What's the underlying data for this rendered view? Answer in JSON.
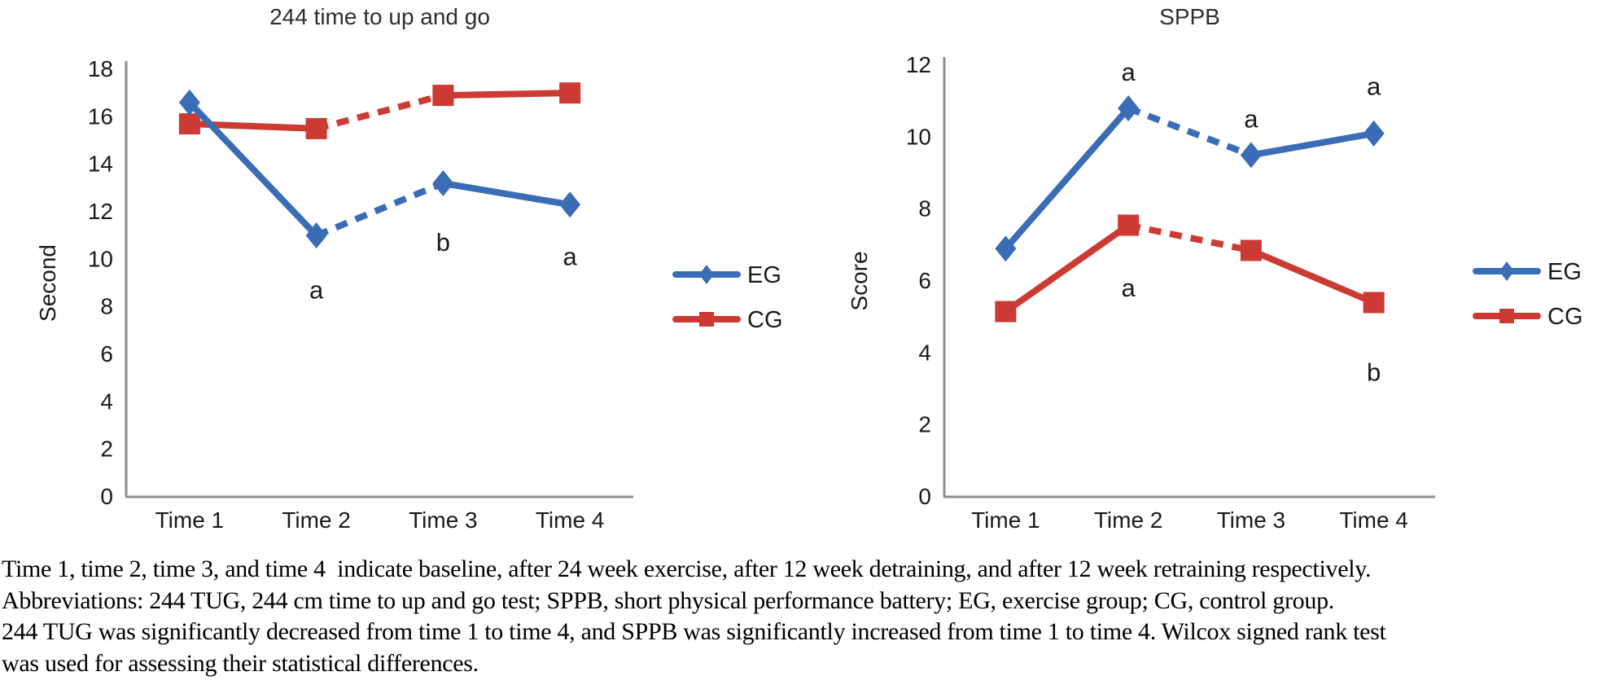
{
  "figure": {
    "caption": {
      "lines": [
        "Time 1, time 2, time 3, and time 4  indicate baseline, after 24 week exercise, after 12 week detraining, and after 12 week retraining respectively.",
        "Abbreviations: 244 TUG, 244 cm time to up and go test; SPPB, short physical performance battery; EG, exercise group; CG, control group.",
        "244 TUG was significantly decreased from time 1 to time 4, and SPPB was significantly increased from time 1 to time 4. Wilcox signed rank test",
        "was used for assessing their statistical differences."
      ]
    }
  },
  "colors": {
    "eg_blue": "#3a6db5",
    "cg_red": "#cc3a34",
    "axis_gray": "#8e8e8e",
    "text_black": "#1a1a1a"
  },
  "chart_data": [
    {
      "type": "line",
      "title": "244 time to up and go",
      "ylabel": "Second",
      "xlabel": "",
      "categories": [
        "Time 1",
        "Time 2",
        "Time 3",
        "Time 4"
      ],
      "ylim": [
        0,
        18
      ],
      "ytick_step": 2,
      "grid": false,
      "legend_position": "right",
      "legend": [
        "EG",
        "CG"
      ],
      "series": [
        {
          "name": "CG",
          "color": "#cc3a34",
          "marker": "square",
          "values": [
            15.7,
            15.5,
            16.9,
            17.0
          ],
          "dashed_segments": [
            [
              1,
              2
            ]
          ]
        },
        {
          "name": "EG",
          "color": "#3a6db5",
          "marker": "diamond",
          "values": [
            16.6,
            11.0,
            13.2,
            12.3
          ],
          "dashed_segments": [
            [
              1,
              2
            ]
          ]
        }
      ],
      "annotations": [
        {
          "text": "a",
          "cat": 1,
          "y": 8.7
        },
        {
          "text": "b",
          "cat": 2,
          "y": 10.7
        },
        {
          "text": "a",
          "cat": 3,
          "y": 10.1
        }
      ]
    },
    {
      "type": "line",
      "title": "SPPB",
      "ylabel": "Score",
      "xlabel": "",
      "categories": [
        "Time 1",
        "Time 2",
        "Time 3",
        "Time 4"
      ],
      "ylim": [
        0,
        12
      ],
      "ytick_step": 2,
      "grid": false,
      "legend_position": "right",
      "legend": [
        "EG",
        "CG"
      ],
      "series": [
        {
          "name": "CG",
          "color": "#cc3a34",
          "marker": "square",
          "values": [
            5.15,
            7.55,
            6.85,
            5.4
          ],
          "dashed_segments": [
            [
              1,
              2
            ]
          ]
        },
        {
          "name": "EG",
          "color": "#3a6db5",
          "marker": "diamond",
          "values": [
            6.9,
            10.8,
            9.5,
            10.1
          ],
          "dashed_segments": [
            [
              1,
              2
            ]
          ]
        }
      ],
      "annotations": [
        {
          "text": "a",
          "cat": 1,
          "y": 11.8
        },
        {
          "text": "a",
          "cat": 2,
          "y": 10.5
        },
        {
          "text": "a",
          "cat": 3,
          "y": 11.4
        },
        {
          "text": "a",
          "cat": 1,
          "y": 5.8
        },
        {
          "text": "b",
          "cat": 3,
          "y": 3.45
        }
      ]
    }
  ]
}
